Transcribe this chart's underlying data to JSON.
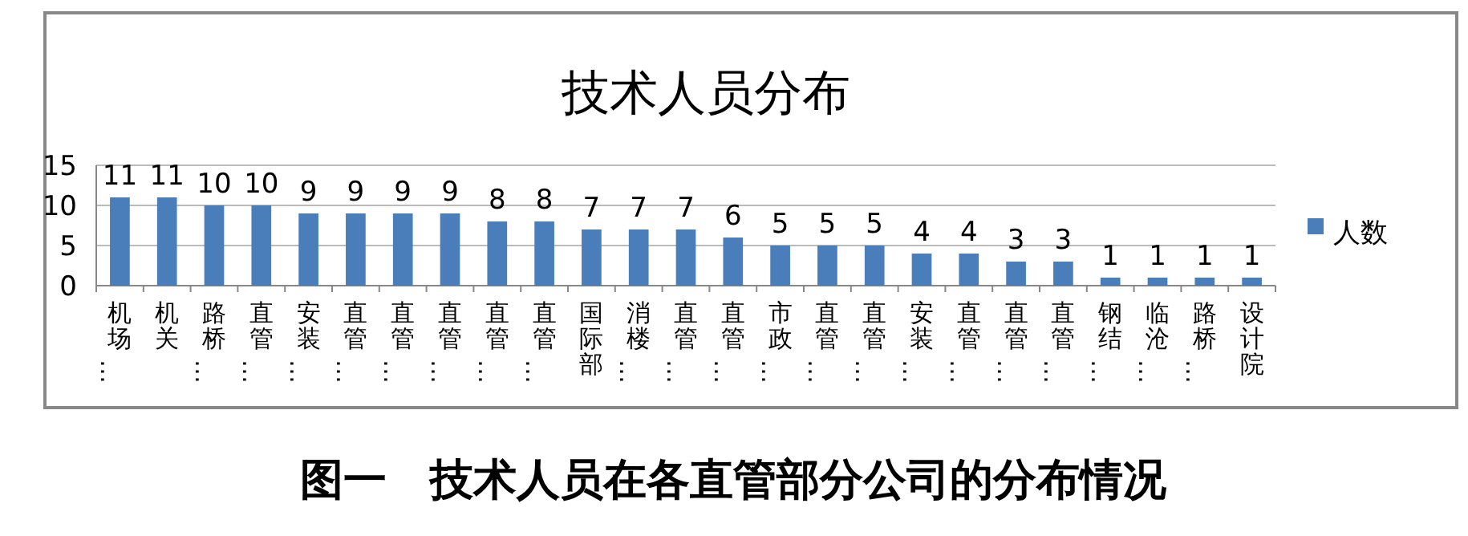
{
  "chart_data": {
    "type": "bar",
    "title": "技术人员分布",
    "categories": [
      "机场…",
      "机关",
      "路桥…",
      "直管…",
      "安装…",
      "直管…",
      "直管…",
      "直管…",
      "直管…",
      "直管…",
      "国际部",
      "消楼…",
      "直管…",
      "直管…",
      "市政…",
      "直管…",
      "直管…",
      "安装…",
      "直管…",
      "直管…",
      "直管…",
      "钢结…",
      "临沧…",
      "路桥…",
      "设计院"
    ],
    "series": [
      {
        "name": "人数",
        "color": "#4a7ebb",
        "values": [
          11,
          11,
          10,
          10,
          9,
          9,
          9,
          9,
          8,
          8,
          7,
          7,
          7,
          6,
          5,
          5,
          5,
          4,
          4,
          3,
          3,
          1,
          1,
          1,
          1
        ]
      }
    ],
    "ylim": [
      0,
      15
    ],
    "yticks": [
      0,
      5,
      10,
      15
    ],
    "grid": "y",
    "legend": "right",
    "data_labels": true,
    "annotations": [
      "图一　技术人员在各直管部分公司的分布情况"
    ]
  }
}
